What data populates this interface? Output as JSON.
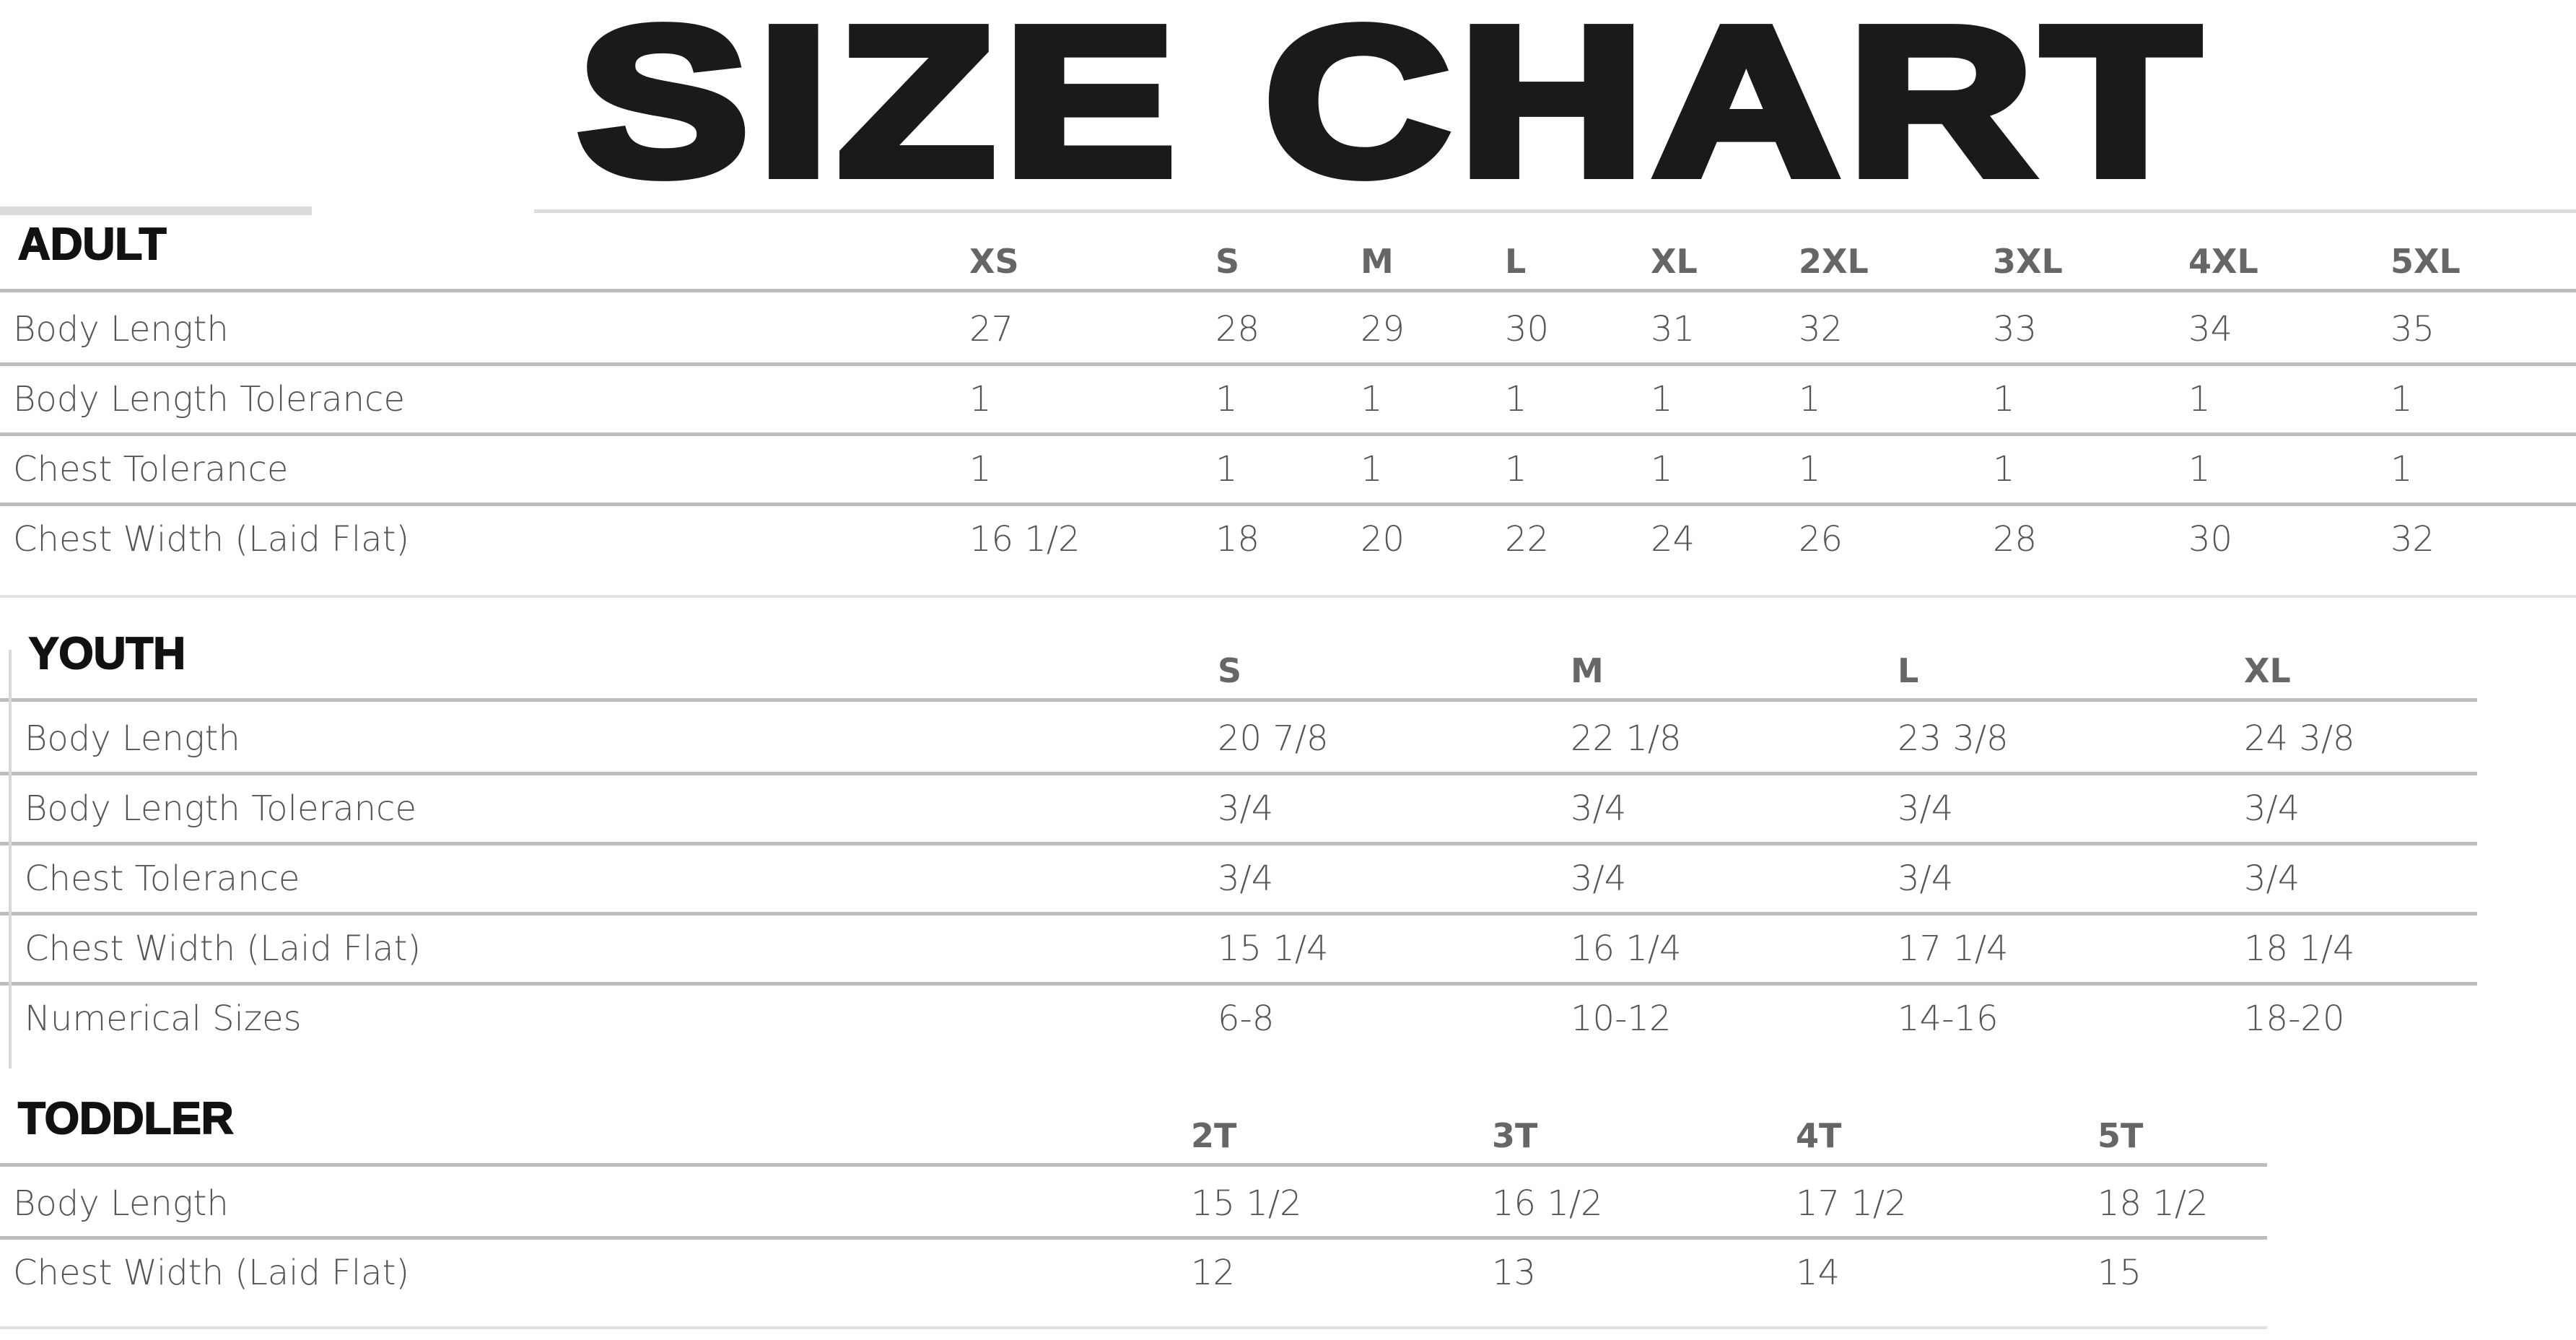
{
  "title": "SIZE CHART",
  "sections": [
    {
      "name": "ADULT",
      "sizes": [
        "XS",
        "S",
        "M",
        "L",
        "XL",
        "2XL",
        "3XL",
        "4XL",
        "5XL"
      ],
      "rows": [
        {
          "label": "Body Length",
          "values": [
            "27",
            "28",
            "29",
            "30",
            "31",
            "32",
            "33",
            "34",
            "35"
          ]
        },
        {
          "label": "Body Length Tolerance",
          "values": [
            "1",
            "1",
            "1",
            "1",
            "1",
            "1",
            "1",
            "1",
            "1"
          ]
        },
        {
          "label": "Chest Tolerance",
          "values": [
            "1",
            "1",
            "1",
            "1",
            "1",
            "1",
            "1",
            "1",
            "1"
          ]
        },
        {
          "label": "Chest Width (Laid Flat)",
          "values": [
            "16 1/2",
            "18",
            "20",
            "22",
            "24",
            "26",
            "28",
            "30",
            "32"
          ]
        }
      ]
    },
    {
      "name": "YOUTH",
      "sizes": [
        "S",
        "M",
        "L",
        "XL"
      ],
      "rows": [
        {
          "label": "Body Length",
          "values": [
            "20 7/8",
            "22 1/8",
            "23 3/8",
            "24 3/8"
          ]
        },
        {
          "label": "Body Length Tolerance",
          "values": [
            "3/4",
            "3/4",
            "3/4",
            "3/4"
          ]
        },
        {
          "label": "Chest Tolerance",
          "values": [
            "3/4",
            "3/4",
            "3/4",
            "3/4"
          ]
        },
        {
          "label": "Chest Width (Laid Flat)",
          "values": [
            "15 1/4",
            "16 1/4",
            "17 1/4",
            "18 1/4"
          ]
        },
        {
          "label": "Numerical Sizes",
          "values": [
            "6-8",
            "10-12",
            "14-16",
            "18-20"
          ]
        }
      ]
    },
    {
      "name": "TODDLER",
      "sizes": [
        "2T",
        "3T",
        "4T",
        "5T"
      ],
      "rows": [
        {
          "label": "Body Length",
          "values": [
            "15 1/2",
            "16 1/2",
            "17 1/2",
            "18 1/2"
          ]
        },
        {
          "label": "Chest Width (Laid Flat)",
          "values": [
            "12",
            "13",
            "14",
            "15"
          ]
        }
      ]
    }
  ]
}
